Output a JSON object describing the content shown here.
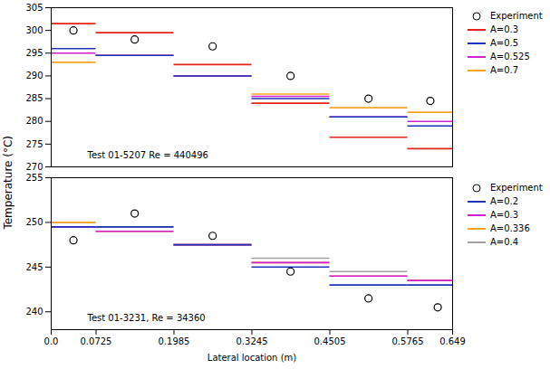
{
  "chart_data": [
    {
      "type": "step",
      "annotation": "Test 01-5207 Re = 440496",
      "y_label": "Temperature (°C)",
      "xlim": [
        0,
        0.649
      ],
      "ylim": [
        270,
        305
      ],
      "yticks": [
        270,
        275,
        280,
        285,
        290,
        295,
        300,
        305
      ],
      "tick_labels": "y",
      "grid": false,
      "legend": "right",
      "bins": [
        0,
        0.0725,
        0.1985,
        0.3245,
        0.4505,
        0.5765,
        0.649
      ],
      "series": [
        {
          "name": "Experiment",
          "type": "scatter",
          "marker": "circle",
          "color": "#000000",
          "x": [
            0.036,
            0.135,
            0.261,
            0.387,
            0.513,
            0.613
          ],
          "values": [
            300,
            298,
            296.5,
            290,
            285,
            284.5
          ]
        },
        {
          "name": "A=0.3",
          "type": "step",
          "color": "#e3241b",
          "values": [
            301.5,
            299.5,
            292.5,
            284,
            276.5,
            274
          ]
        },
        {
          "name": "A=0.5",
          "type": "step",
          "color": "#2133b8",
          "values": [
            296,
            294.5,
            290,
            285,
            281,
            279
          ]
        },
        {
          "name": "A=0.525",
          "type": "step",
          "color": "#d21fd2",
          "values": [
            295,
            294.5,
            290,
            285.5,
            281,
            280
          ]
        },
        {
          "name": "A=0.7",
          "type": "step",
          "color": "#f5a623",
          "values": [
            293,
            294.5,
            290,
            286,
            283,
            282
          ]
        }
      ]
    },
    {
      "type": "step",
      "annotation": "Test 01-3231, Re = 34360",
      "x_label": "Lateral location (m)",
      "xlim": [
        0,
        0.649
      ],
      "xticks": [
        {
          "value": 0,
          "label": "0.0"
        },
        0.0725,
        0.1985,
        0.3245,
        0.4505,
        0.5765,
        0.649
      ],
      "ylim": [
        238,
        255
      ],
      "yticks": [
        240,
        245,
        250,
        255
      ],
      "grid": false,
      "legend": "right",
      "bins": [
        0,
        0.0725,
        0.1985,
        0.3245,
        0.4505,
        0.5765,
        0.649
      ],
      "series": [
        {
          "name": "Experiment",
          "type": "scatter",
          "marker": "circle",
          "color": "#000000",
          "x": [
            0.036,
            0.135,
            0.261,
            0.387,
            0.513,
            0.625
          ],
          "values": [
            248,
            251,
            248.5,
            244.5,
            241.5,
            240.5
          ]
        },
        {
          "name": "A=0.2",
          "type": "step",
          "color": "#2133b8",
          "values": [
            249.5,
            249.5,
            247.5,
            245,
            243,
            243
          ]
        },
        {
          "name": "A=0.3",
          "type": "step",
          "color": "#d21fd2",
          "values": [
            249.5,
            249,
            247.5,
            245.5,
            244,
            243.5
          ]
        },
        {
          "name": "A=0.336",
          "type": "step",
          "color": "#f5a623",
          "values": [
            250,
            249,
            247.5,
            245.5,
            244,
            243.5
          ]
        },
        {
          "name": "A=0.4",
          "type": "step",
          "color": "#a0a0a0",
          "values": [
            250,
            249.5,
            247.5,
            246,
            244.5,
            243.5
          ]
        }
      ]
    }
  ]
}
